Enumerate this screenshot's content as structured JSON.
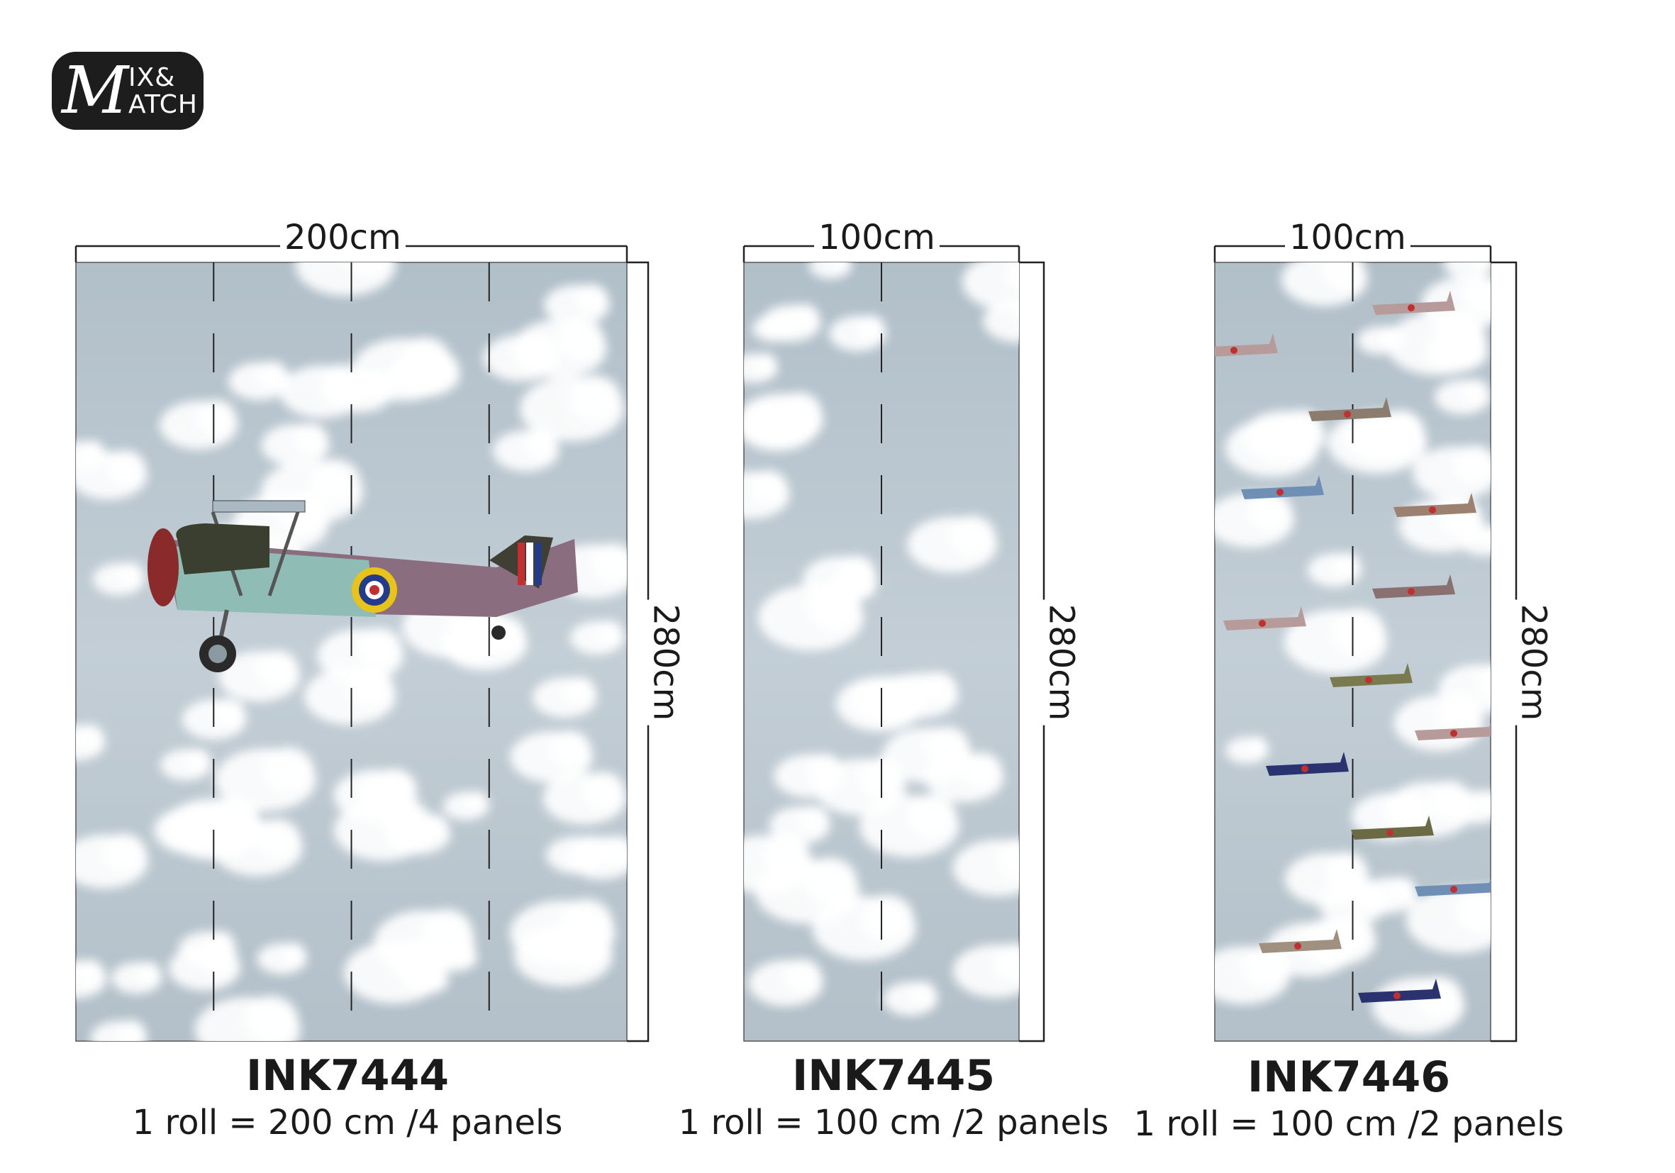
{
  "logo": {
    "script": "M",
    "top": "IX&",
    "bottom": "ATCH"
  },
  "colors": {
    "sky": "#b4c1ca",
    "cloud": "#ffffff",
    "line": "#1a1a1a"
  },
  "panels": [
    {
      "code": "INK7444",
      "width_label": "200cm",
      "height_label": "280cm",
      "description": "1 roll = 200 cm /4 panels",
      "panel_count": 4
    },
    {
      "code": "INK7445",
      "width_label": "100cm",
      "height_label": "280cm",
      "description": "1 roll = 100 cm /2 panels",
      "panel_count": 2
    },
    {
      "code": "INK7446",
      "width_label": "100cm",
      "height_label": "280cm",
      "description": "1 roll = 100 cm /2 panels",
      "panel_count": 2
    }
  ]
}
